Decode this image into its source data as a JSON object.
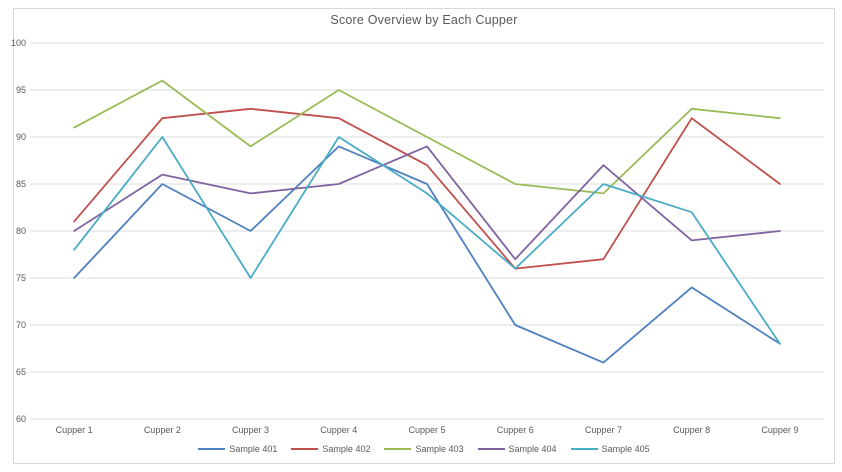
{
  "chart_data": {
    "type": "line",
    "title": "Score Overview by Each Cupper",
    "categories": [
      "Cupper 1",
      "Cupper 2",
      "Cupper 3",
      "Cupper 4",
      "Cupper 5",
      "Cupper 6",
      "Cupper 7",
      "Cupper 8",
      "Cupper 9"
    ],
    "series": [
      {
        "name": "Sample 401",
        "color": "#4F81BD",
        "values": [
          75,
          85,
          80,
          89,
          85,
          70,
          66,
          74,
          68
        ]
      },
      {
        "name": "Sample 402",
        "color": "#C0504D",
        "values": [
          81,
          92,
          93,
          92,
          87,
          76,
          77,
          92,
          85
        ]
      },
      {
        "name": "Sample 403",
        "color": "#9BBB59",
        "values": [
          91,
          96,
          89,
          95,
          90,
          85,
          84,
          93,
          92
        ]
      },
      {
        "name": "Sample 404",
        "color": "#8064A2",
        "values": [
          80,
          86,
          84,
          85,
          89,
          77,
          87,
          79,
          80
        ]
      },
      {
        "name": "Sample 405",
        "color": "#4BACC6",
        "values": [
          78,
          90,
          75,
          90,
          84,
          76,
          85,
          82,
          68
        ]
      }
    ],
    "y_axis": {
      "min": 60,
      "max": 100,
      "step": 5,
      "tick_labels": [
        "60",
        "65",
        "70",
        "75",
        "80",
        "85",
        "90",
        "95",
        "100"
      ]
    },
    "x_axis_label": "",
    "y_axis_label": "",
    "legend_position": "bottom",
    "grid": "horizontal",
    "colors": {
      "grid": "#DEDEDE",
      "text": "#595959",
      "frame_border": "#D9D9D9",
      "background": "#FFFFFF"
    }
  }
}
